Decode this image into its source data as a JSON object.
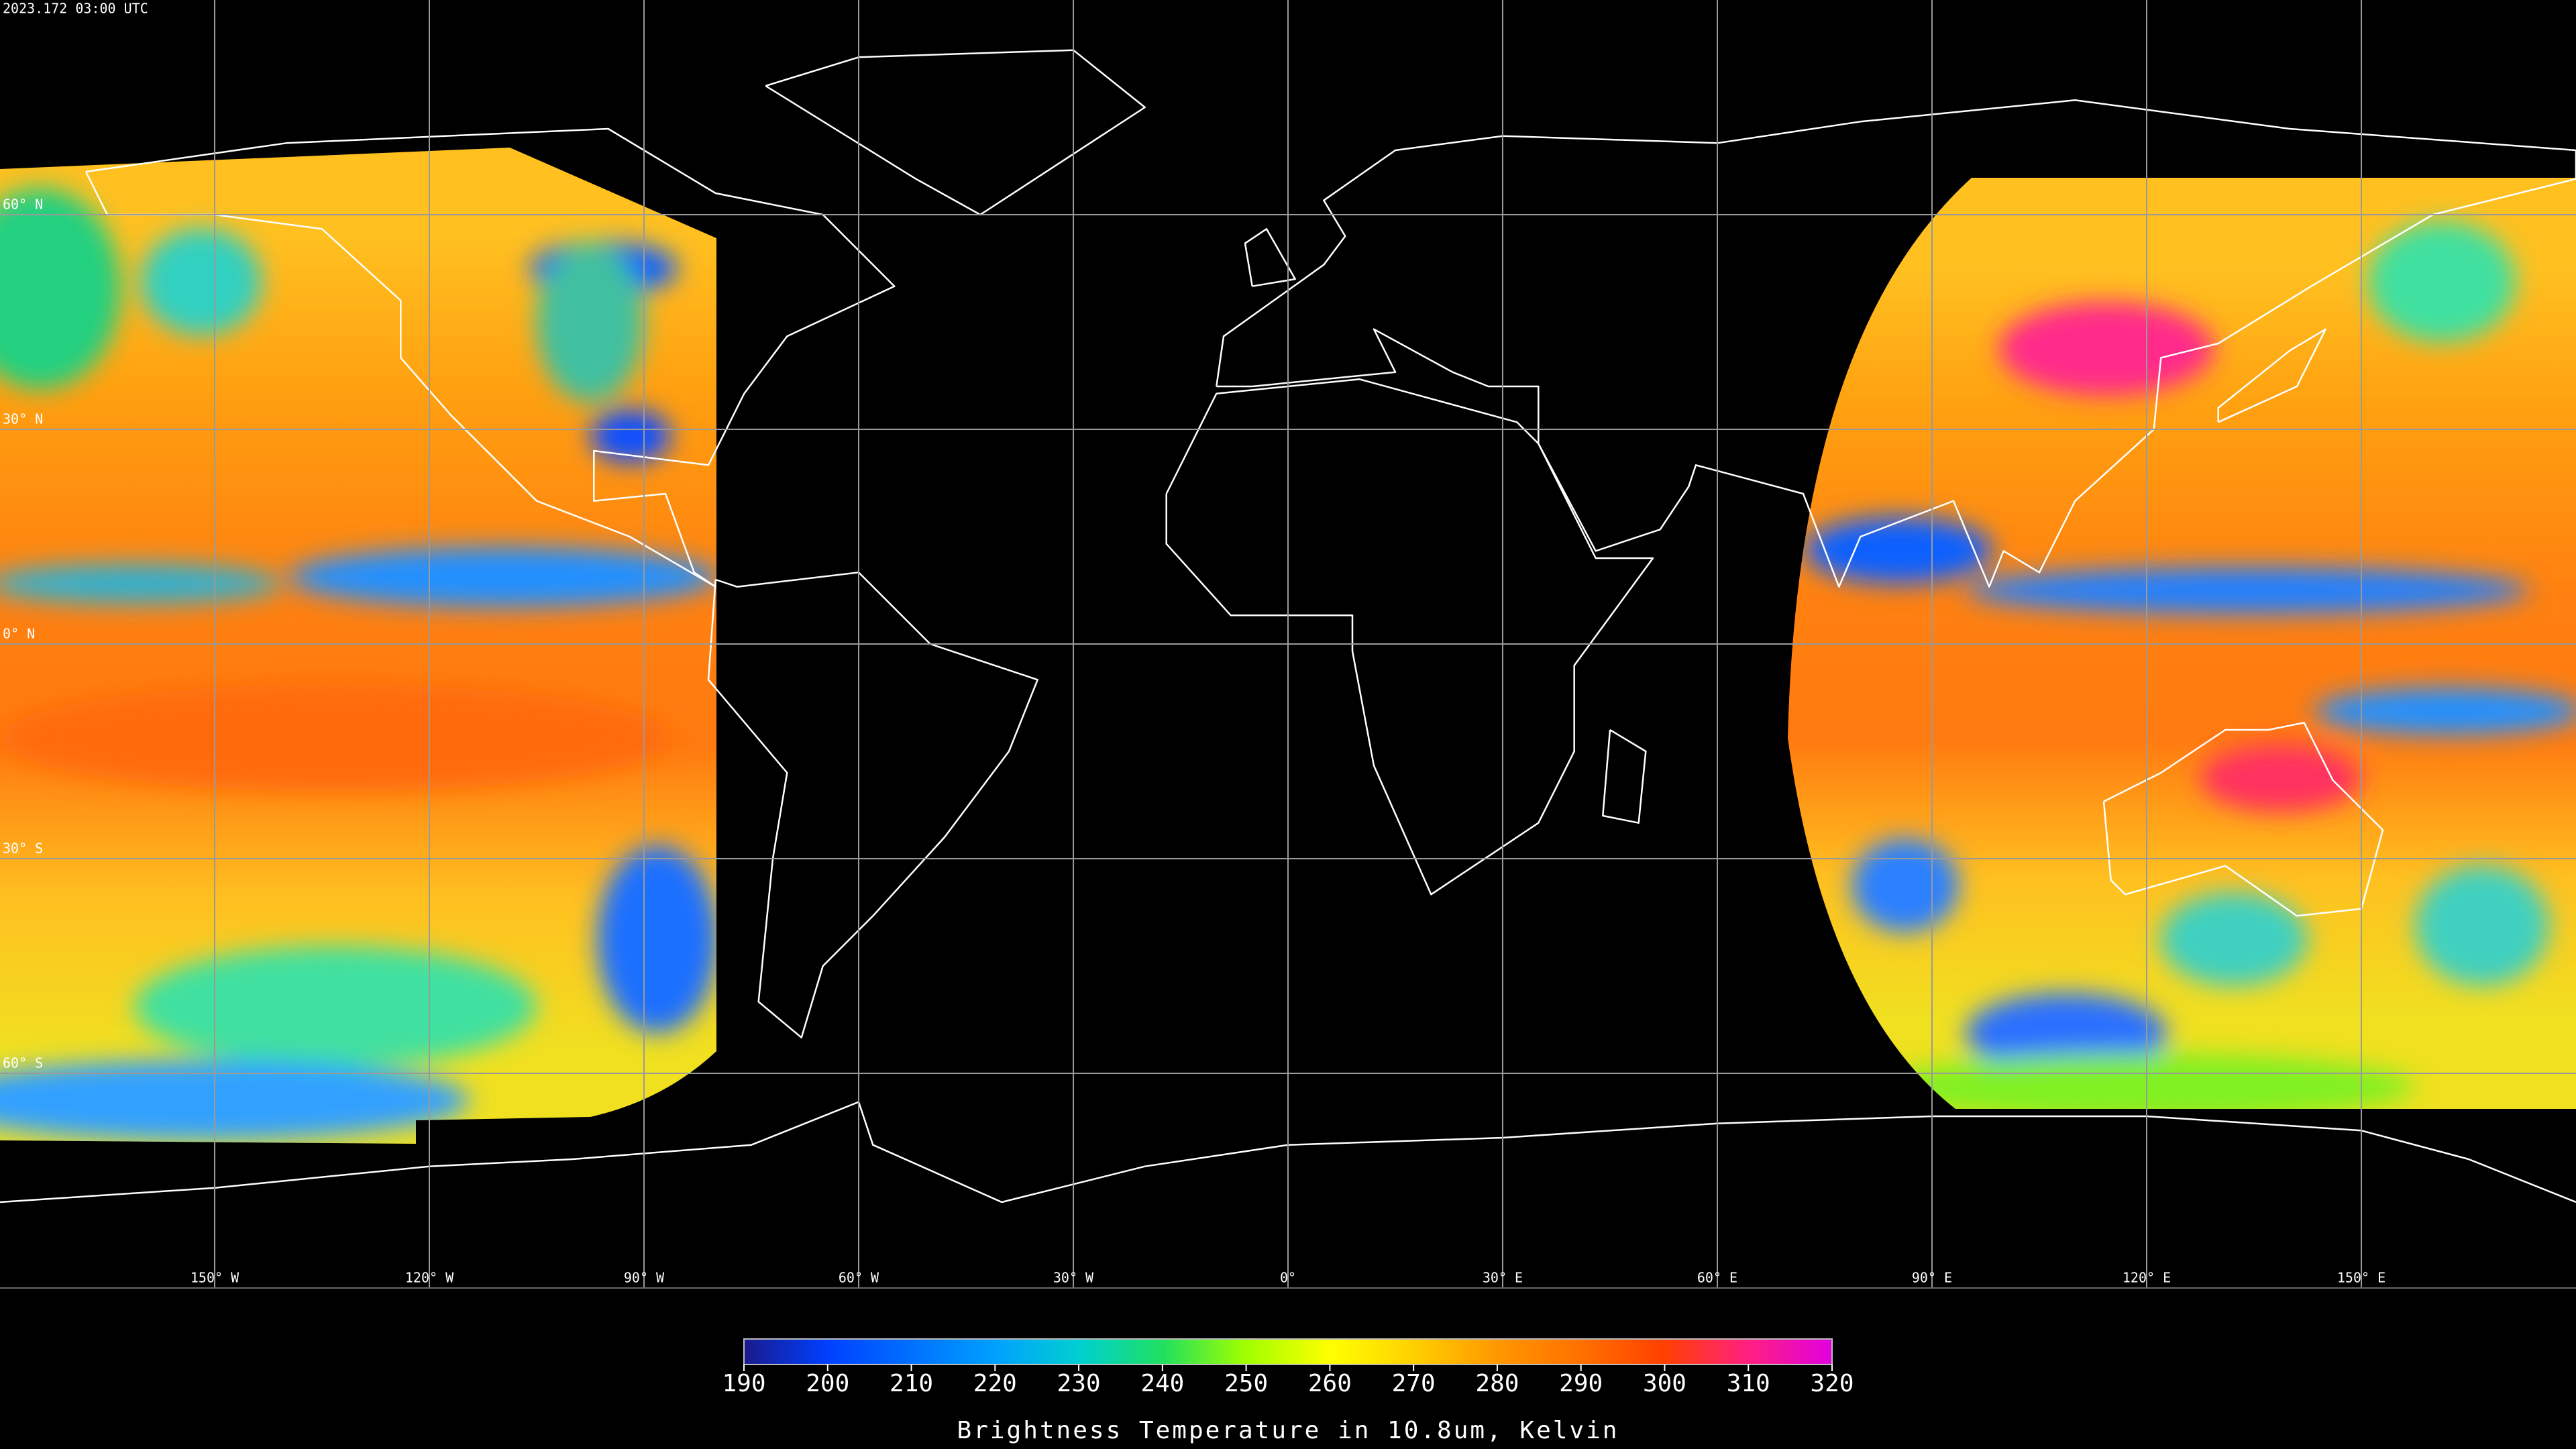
{
  "timestamp": "2023.172 03:00 UTC",
  "map": {
    "lon_ticks": [
      {
        "value": -150,
        "label": "150° W"
      },
      {
        "value": -120,
        "label": "120° W"
      },
      {
        "value": -90,
        "label": "90° W"
      },
      {
        "value": -60,
        "label": "60° W"
      },
      {
        "value": -30,
        "label": "30° W"
      },
      {
        "value": 0,
        "label": "0°"
      },
      {
        "value": 30,
        "label": "30° E"
      },
      {
        "value": 60,
        "label": "60° E"
      },
      {
        "value": 90,
        "label": "90° E"
      },
      {
        "value": 120,
        "label": "120° E"
      },
      {
        "value": 150,
        "label": "150° E"
      }
    ],
    "lat_ticks": [
      {
        "value": 60,
        "label": "60° N"
      },
      {
        "value": 30,
        "label": "30° N"
      },
      {
        "value": 0,
        "label": "0° N"
      },
      {
        "value": -30,
        "label": "30° S"
      },
      {
        "value": -60,
        "label": "60° S"
      }
    ]
  },
  "colorbar": {
    "range": [
      190,
      320
    ],
    "ticks": [
      190,
      200,
      210,
      220,
      230,
      240,
      250,
      260,
      270,
      280,
      290,
      300,
      310,
      320
    ],
    "label": "Brightness Temperature in 10.8um, Kelvin"
  }
}
